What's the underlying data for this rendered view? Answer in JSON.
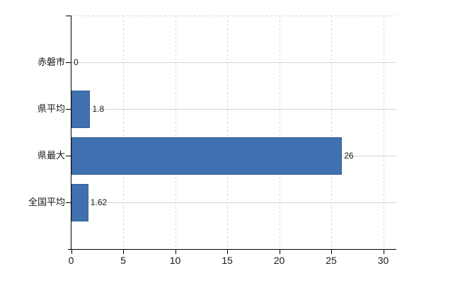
{
  "chart_data": {
    "type": "bar",
    "orientation": "horizontal",
    "title": "",
    "xlabel": "",
    "ylabel": "",
    "categories": [
      "赤磐市",
      "県平均",
      "県最大",
      "全国平均"
    ],
    "values": [
      0,
      1.8,
      26,
      1.62
    ],
    "value_labels": [
      "0",
      "1.8",
      "26",
      "1.62"
    ],
    "x_ticks": [
      0,
      5,
      10,
      15,
      20,
      25,
      30
    ],
    "x_tick_labels": [
      "0",
      "5",
      "10",
      "15",
      "20",
      "25",
      "30"
    ],
    "xlim": [
      0,
      31.2
    ],
    "legend": "none",
    "grid": {
      "vertical": "dashed light gray at each x tick",
      "horizontal": "solid light gray at each category center",
      "top_border": "dashed light gray"
    },
    "colors": {
      "bar": "#4070b0",
      "bar_border": "#35619c",
      "grid": "#d6d6d6",
      "axis": "#000000",
      "text": "#1a1a1a",
      "background": "#ffffff"
    }
  }
}
